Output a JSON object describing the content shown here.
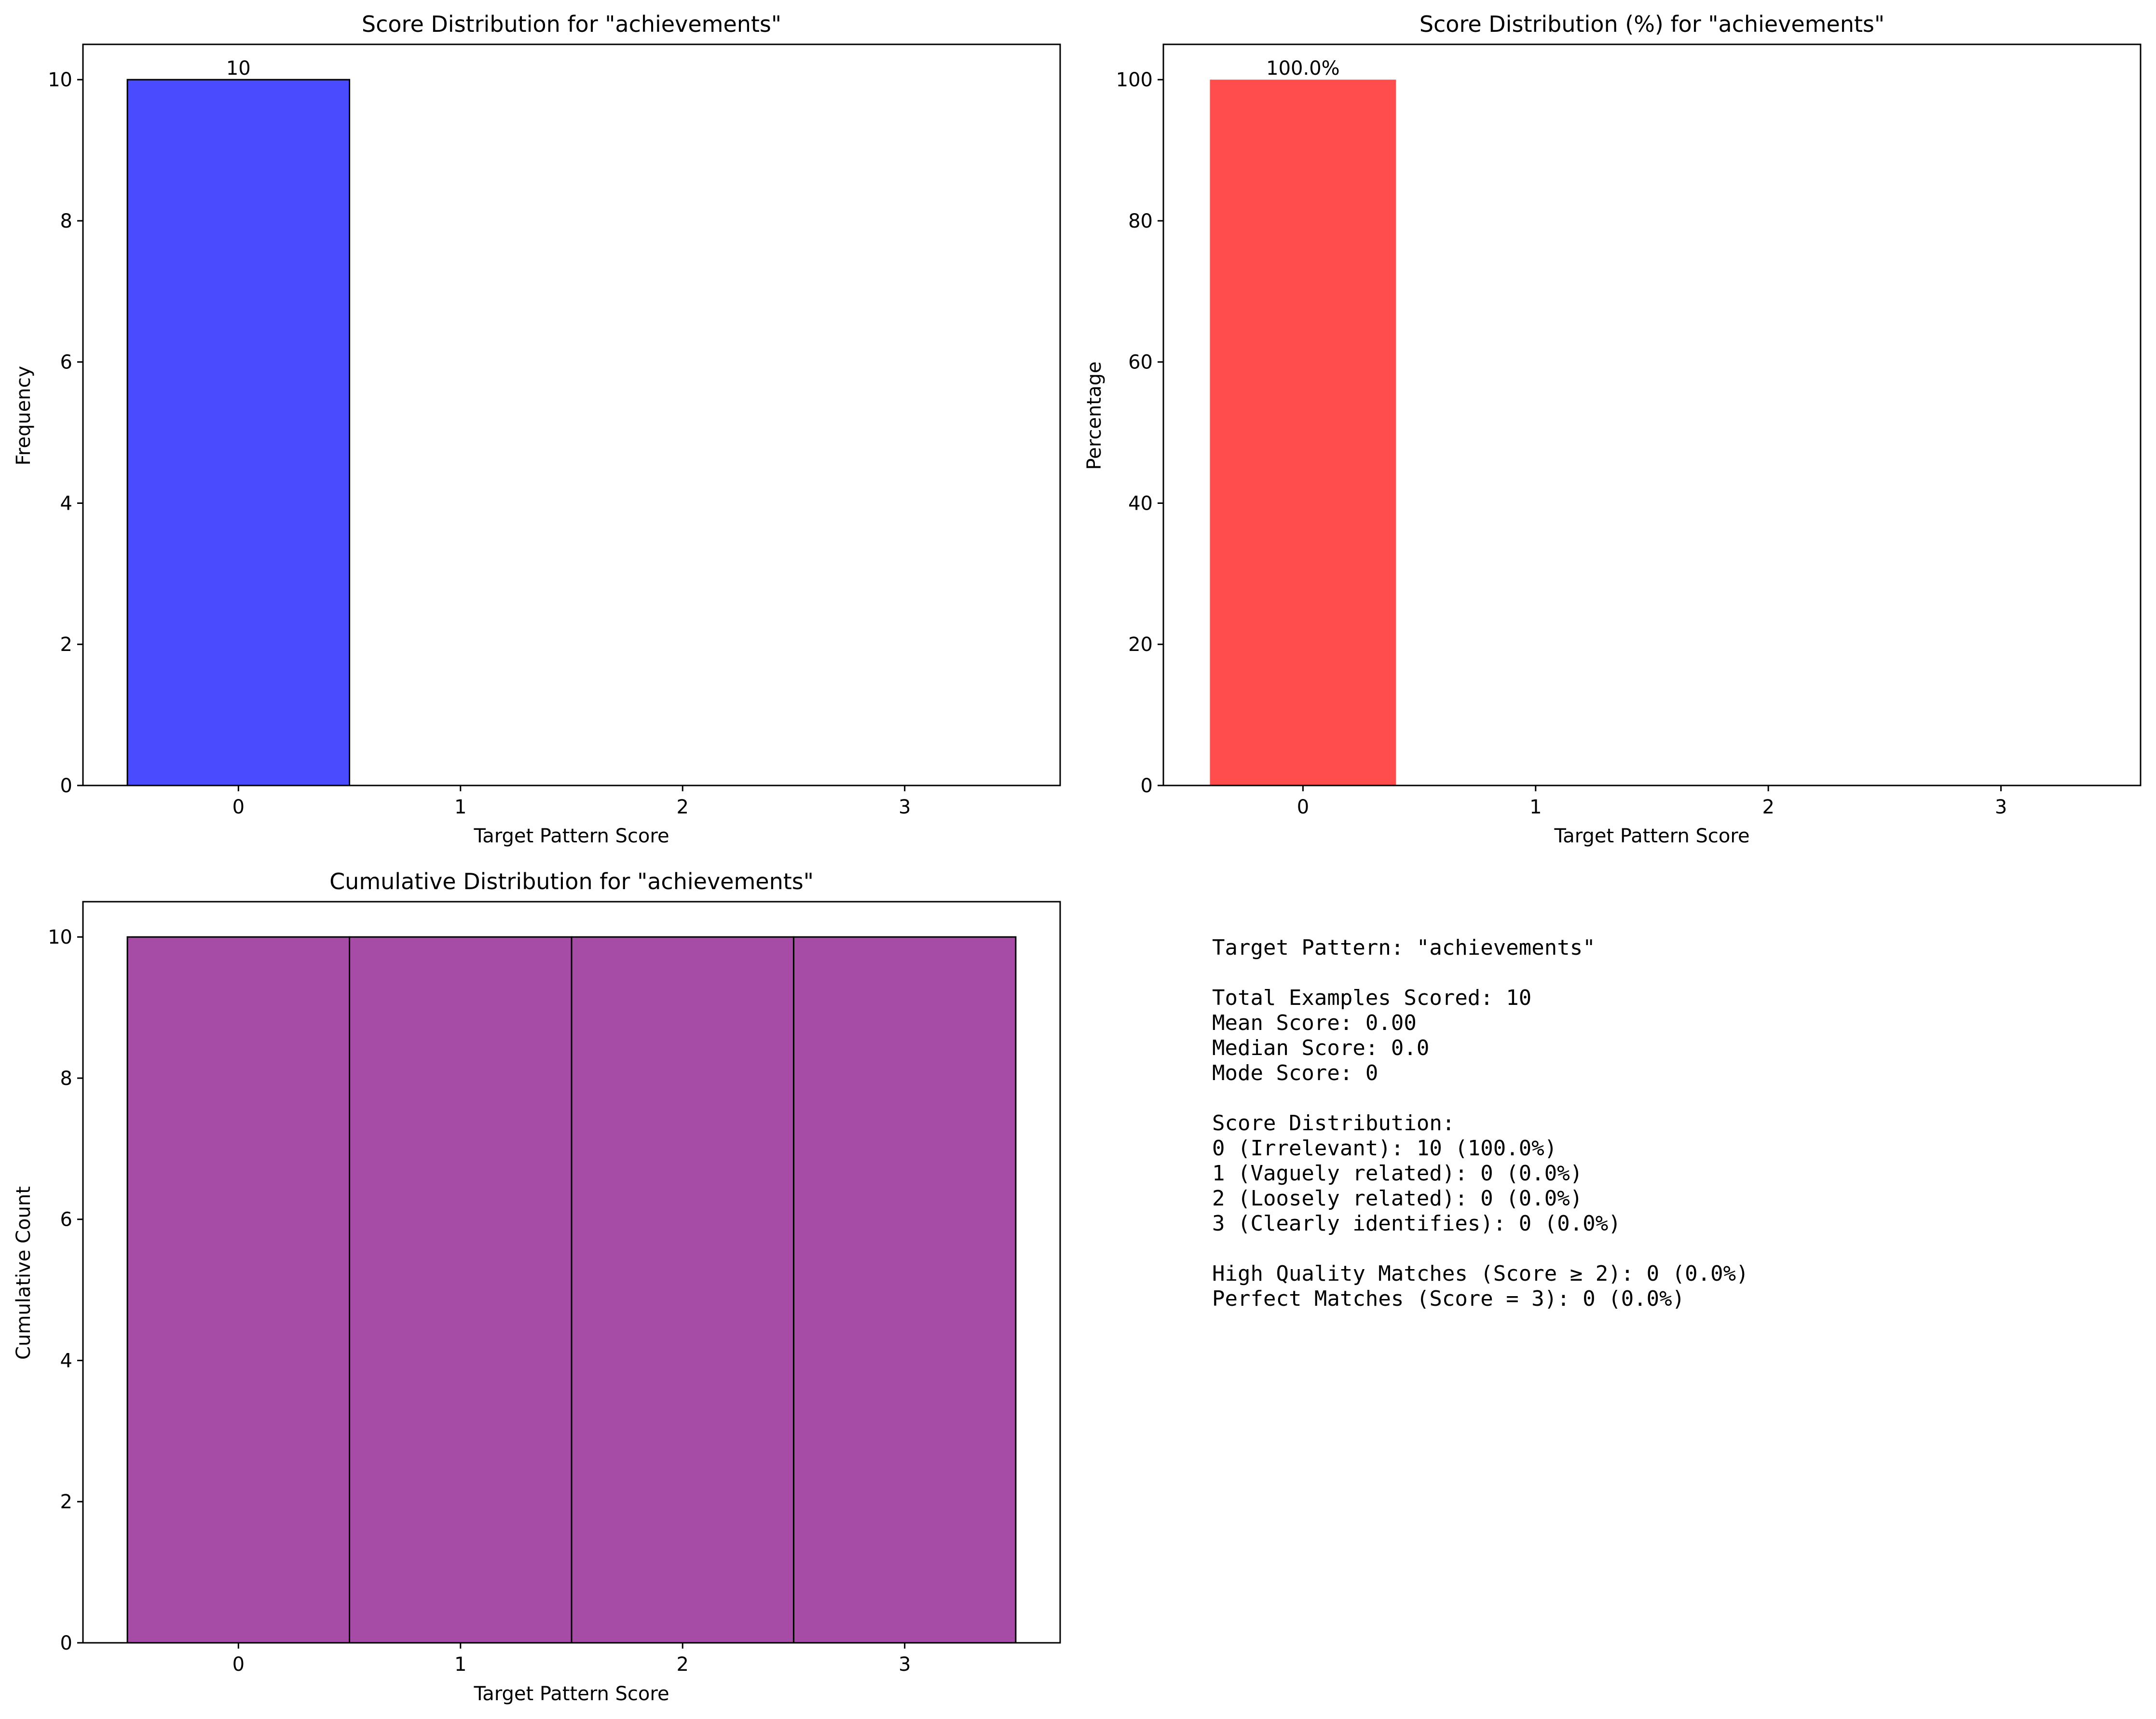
{
  "chart_data": [
    {
      "type": "bar",
      "title": "Score Distribution for \"achievements\"",
      "xlabel": "Target Pattern Score",
      "ylabel": "Frequency",
      "categories": [
        0,
        1,
        2,
        3
      ],
      "values": [
        10,
        0,
        0,
        0
      ],
      "data_labels": [
        "10"
      ],
      "xlim": [
        -0.7,
        3.7
      ],
      "ylim": [
        0,
        10.5
      ],
      "yticks": [
        0,
        2,
        4,
        6,
        8,
        10
      ],
      "bar_color": "#4a4aff",
      "edge_color": "#000000",
      "grid": false
    },
    {
      "type": "bar",
      "title": "Score Distribution (%) for \"achievements\"",
      "xlabel": "Target Pattern Score",
      "ylabel": "Percentage",
      "categories": [
        0,
        1,
        2,
        3
      ],
      "values": [
        100.0,
        0.0,
        0.0,
        0.0
      ],
      "data_labels": [
        "100.0%"
      ],
      "xlim": [
        -0.6,
        3.6
      ],
      "ylim": [
        0,
        105
      ],
      "yticks": [
        0,
        20,
        40,
        60,
        80,
        100
      ],
      "bar_color": "#ff4d4d",
      "grid": false
    },
    {
      "type": "bar",
      "title": "Cumulative Distribution for \"achievements\"",
      "xlabel": "Target Pattern Score",
      "ylabel": "Cumulative Count",
      "categories": [
        0,
        1,
        2,
        3
      ],
      "values": [
        10,
        10,
        10,
        10
      ],
      "xlim": [
        -0.7,
        3.7
      ],
      "ylim": [
        0,
        10.5
      ],
      "yticks": [
        0,
        2,
        4,
        6,
        8,
        10
      ],
      "bar_color": "#a64ca6",
      "edge_color": "#000000",
      "grid": false
    }
  ],
  "stats_lines": [
    "Target Pattern: \"achievements\"",
    "",
    "Total Examples Scored: 10",
    "Mean Score: 0.00",
    "Median Score: 0.0",
    "Mode Score: 0",
    "",
    "Score Distribution:",
    "0 (Irrelevant): 10 (100.0%)",
    "1 (Vaguely related): 0 (0.0%)",
    "2 (Loosely related): 0 (0.0%)",
    "3 (Clearly identifies): 0 (0.0%)",
    "",
    "High Quality Matches (Score ≥ 2): 0 (0.0%)",
    "Perfect Matches (Score = 3): 0 (0.0%)"
  ]
}
